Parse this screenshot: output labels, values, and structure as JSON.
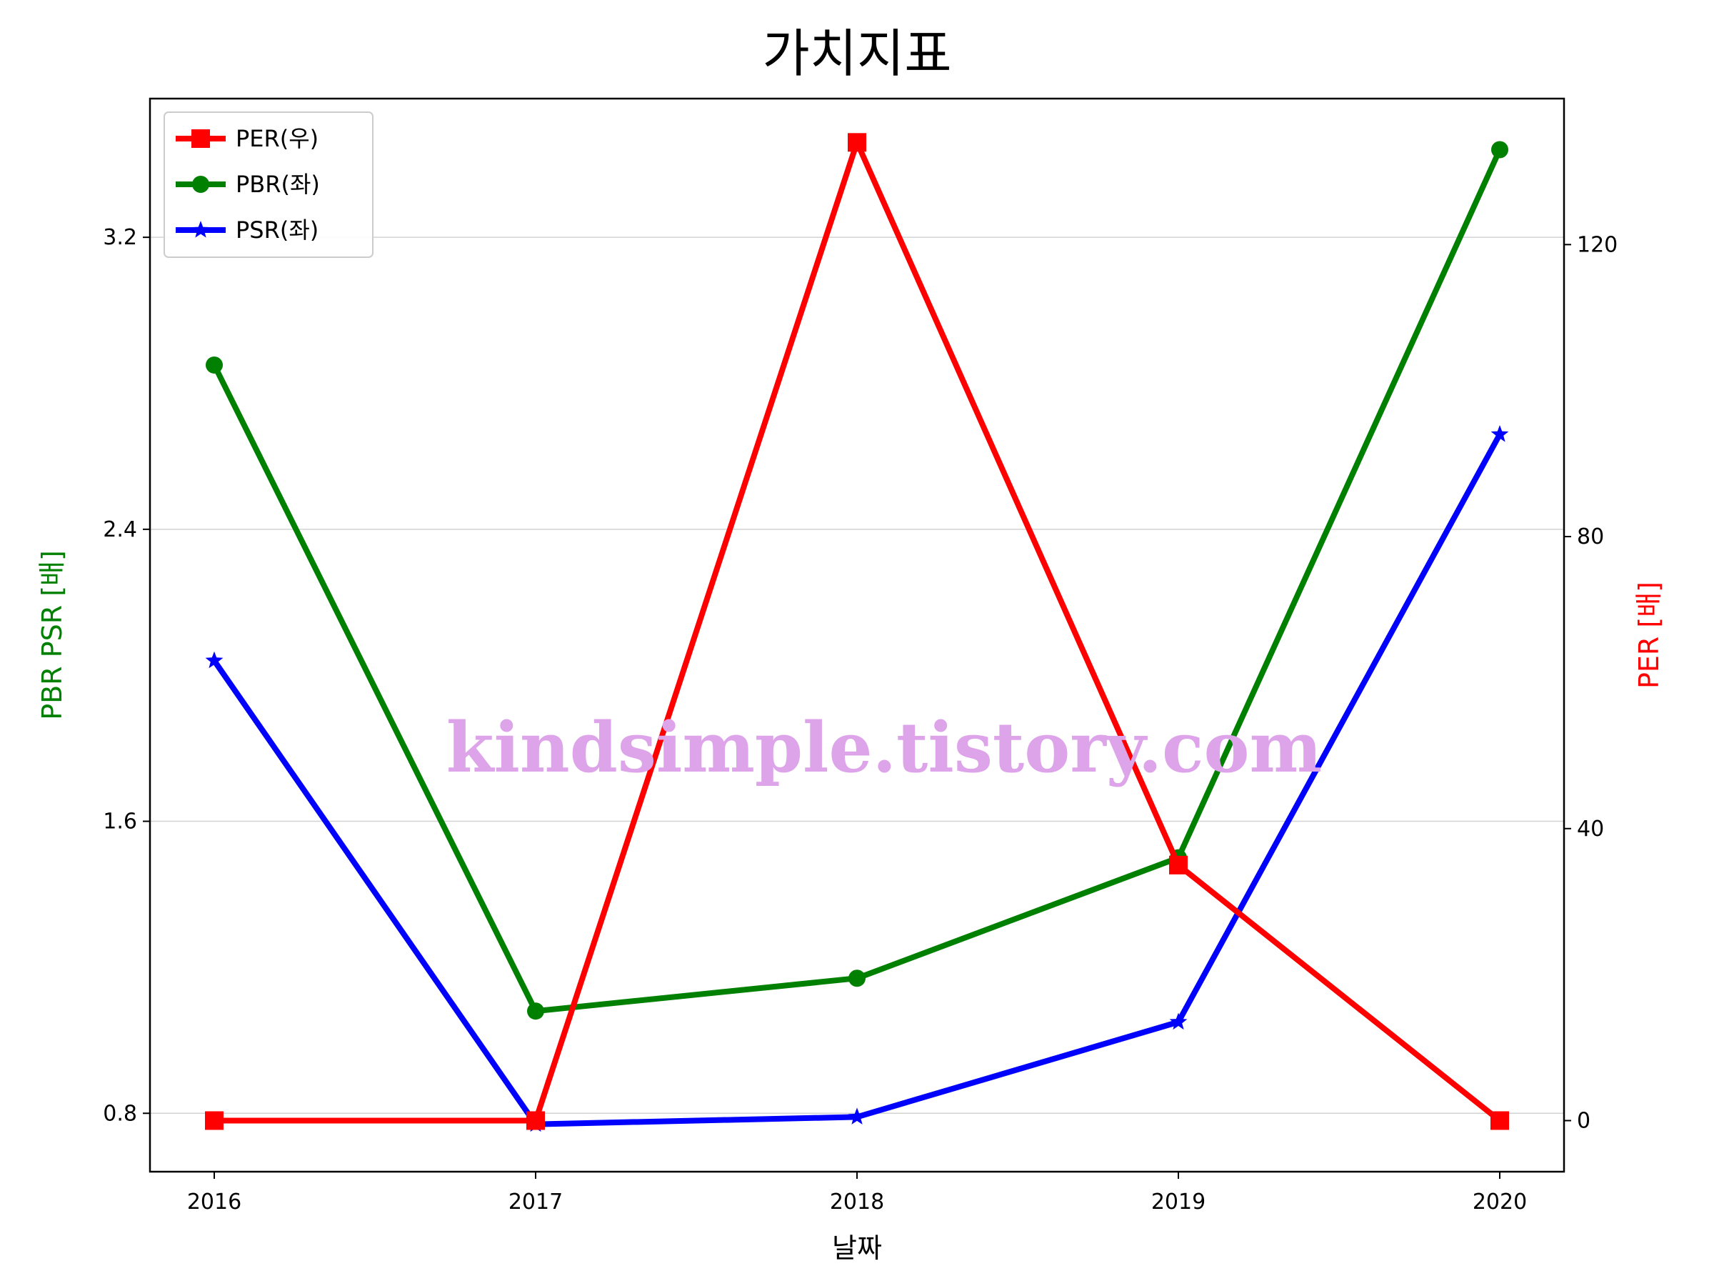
{
  "chart_data": {
    "type": "line",
    "title": "가치지표",
    "xlabel": "날짜",
    "ylabel_left": "PBR PSR [배]",
    "ylabel_right": "PER [배]",
    "categories": [
      "2016",
      "2017",
      "2018",
      "2019",
      "2020"
    ],
    "left_ticks": [
      "0.8",
      "1.6",
      "2.4",
      "3.2"
    ],
    "right_ticks": [
      "0",
      "40",
      "80",
      "120"
    ],
    "ylim_left": [
      0.64,
      3.58
    ],
    "ylim_right": [
      -7,
      140
    ],
    "grid": "horizontal",
    "legend_position": "top-left",
    "series": [
      {
        "name": "PER(우)",
        "axis": "right",
        "color": "#ff0000",
        "marker": "square",
        "values": [
          0,
          0,
          134,
          35,
          0
        ]
      },
      {
        "name": "PBR(좌)",
        "axis": "left",
        "color": "#008000",
        "marker": "circle",
        "values": [
          2.85,
          1.08,
          1.17,
          1.5,
          3.44
        ]
      },
      {
        "name": "PSR(좌)",
        "axis": "left",
        "color": "#0000ff",
        "marker": "star",
        "values": [
          2.04,
          0.77,
          0.79,
          1.05,
          2.66
        ]
      }
    ],
    "watermark": "kindsimple.tistory.com"
  }
}
